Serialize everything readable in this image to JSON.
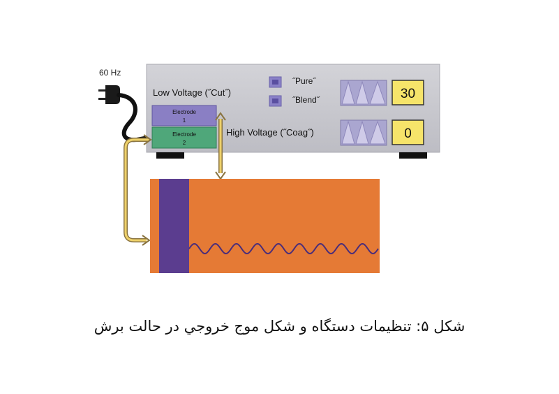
{
  "device": {
    "frequency_label": "60 Hz",
    "low_voltage_label": "Low Voltage (˝Cut˝)",
    "high_voltage_label": "High Voltage (˝Coag˝)",
    "mode_pure": "˝Pure˝",
    "mode_blend": "˝Blend˝",
    "low_voltage_value": "30",
    "high_voltage_value": "0",
    "electrode1_line1": "Electrode",
    "electrode1_line2": "1",
    "electrode2_line1": "Electrode",
    "electrode2_line2": "2"
  },
  "caption": "شكل ۵: تنظيمات دستگاه و شكل موج خروجي در حالت برش",
  "colors": {
    "panel": "#c8c8ce",
    "electrode1": "#8a7fc4",
    "electrode2": "#4fa77a",
    "tissue": "#e57a35",
    "electrode_bar": "#5b3d8f",
    "display": "#f6e46a",
    "arrow": "#e8c455",
    "wave": "#4a2d7a"
  }
}
